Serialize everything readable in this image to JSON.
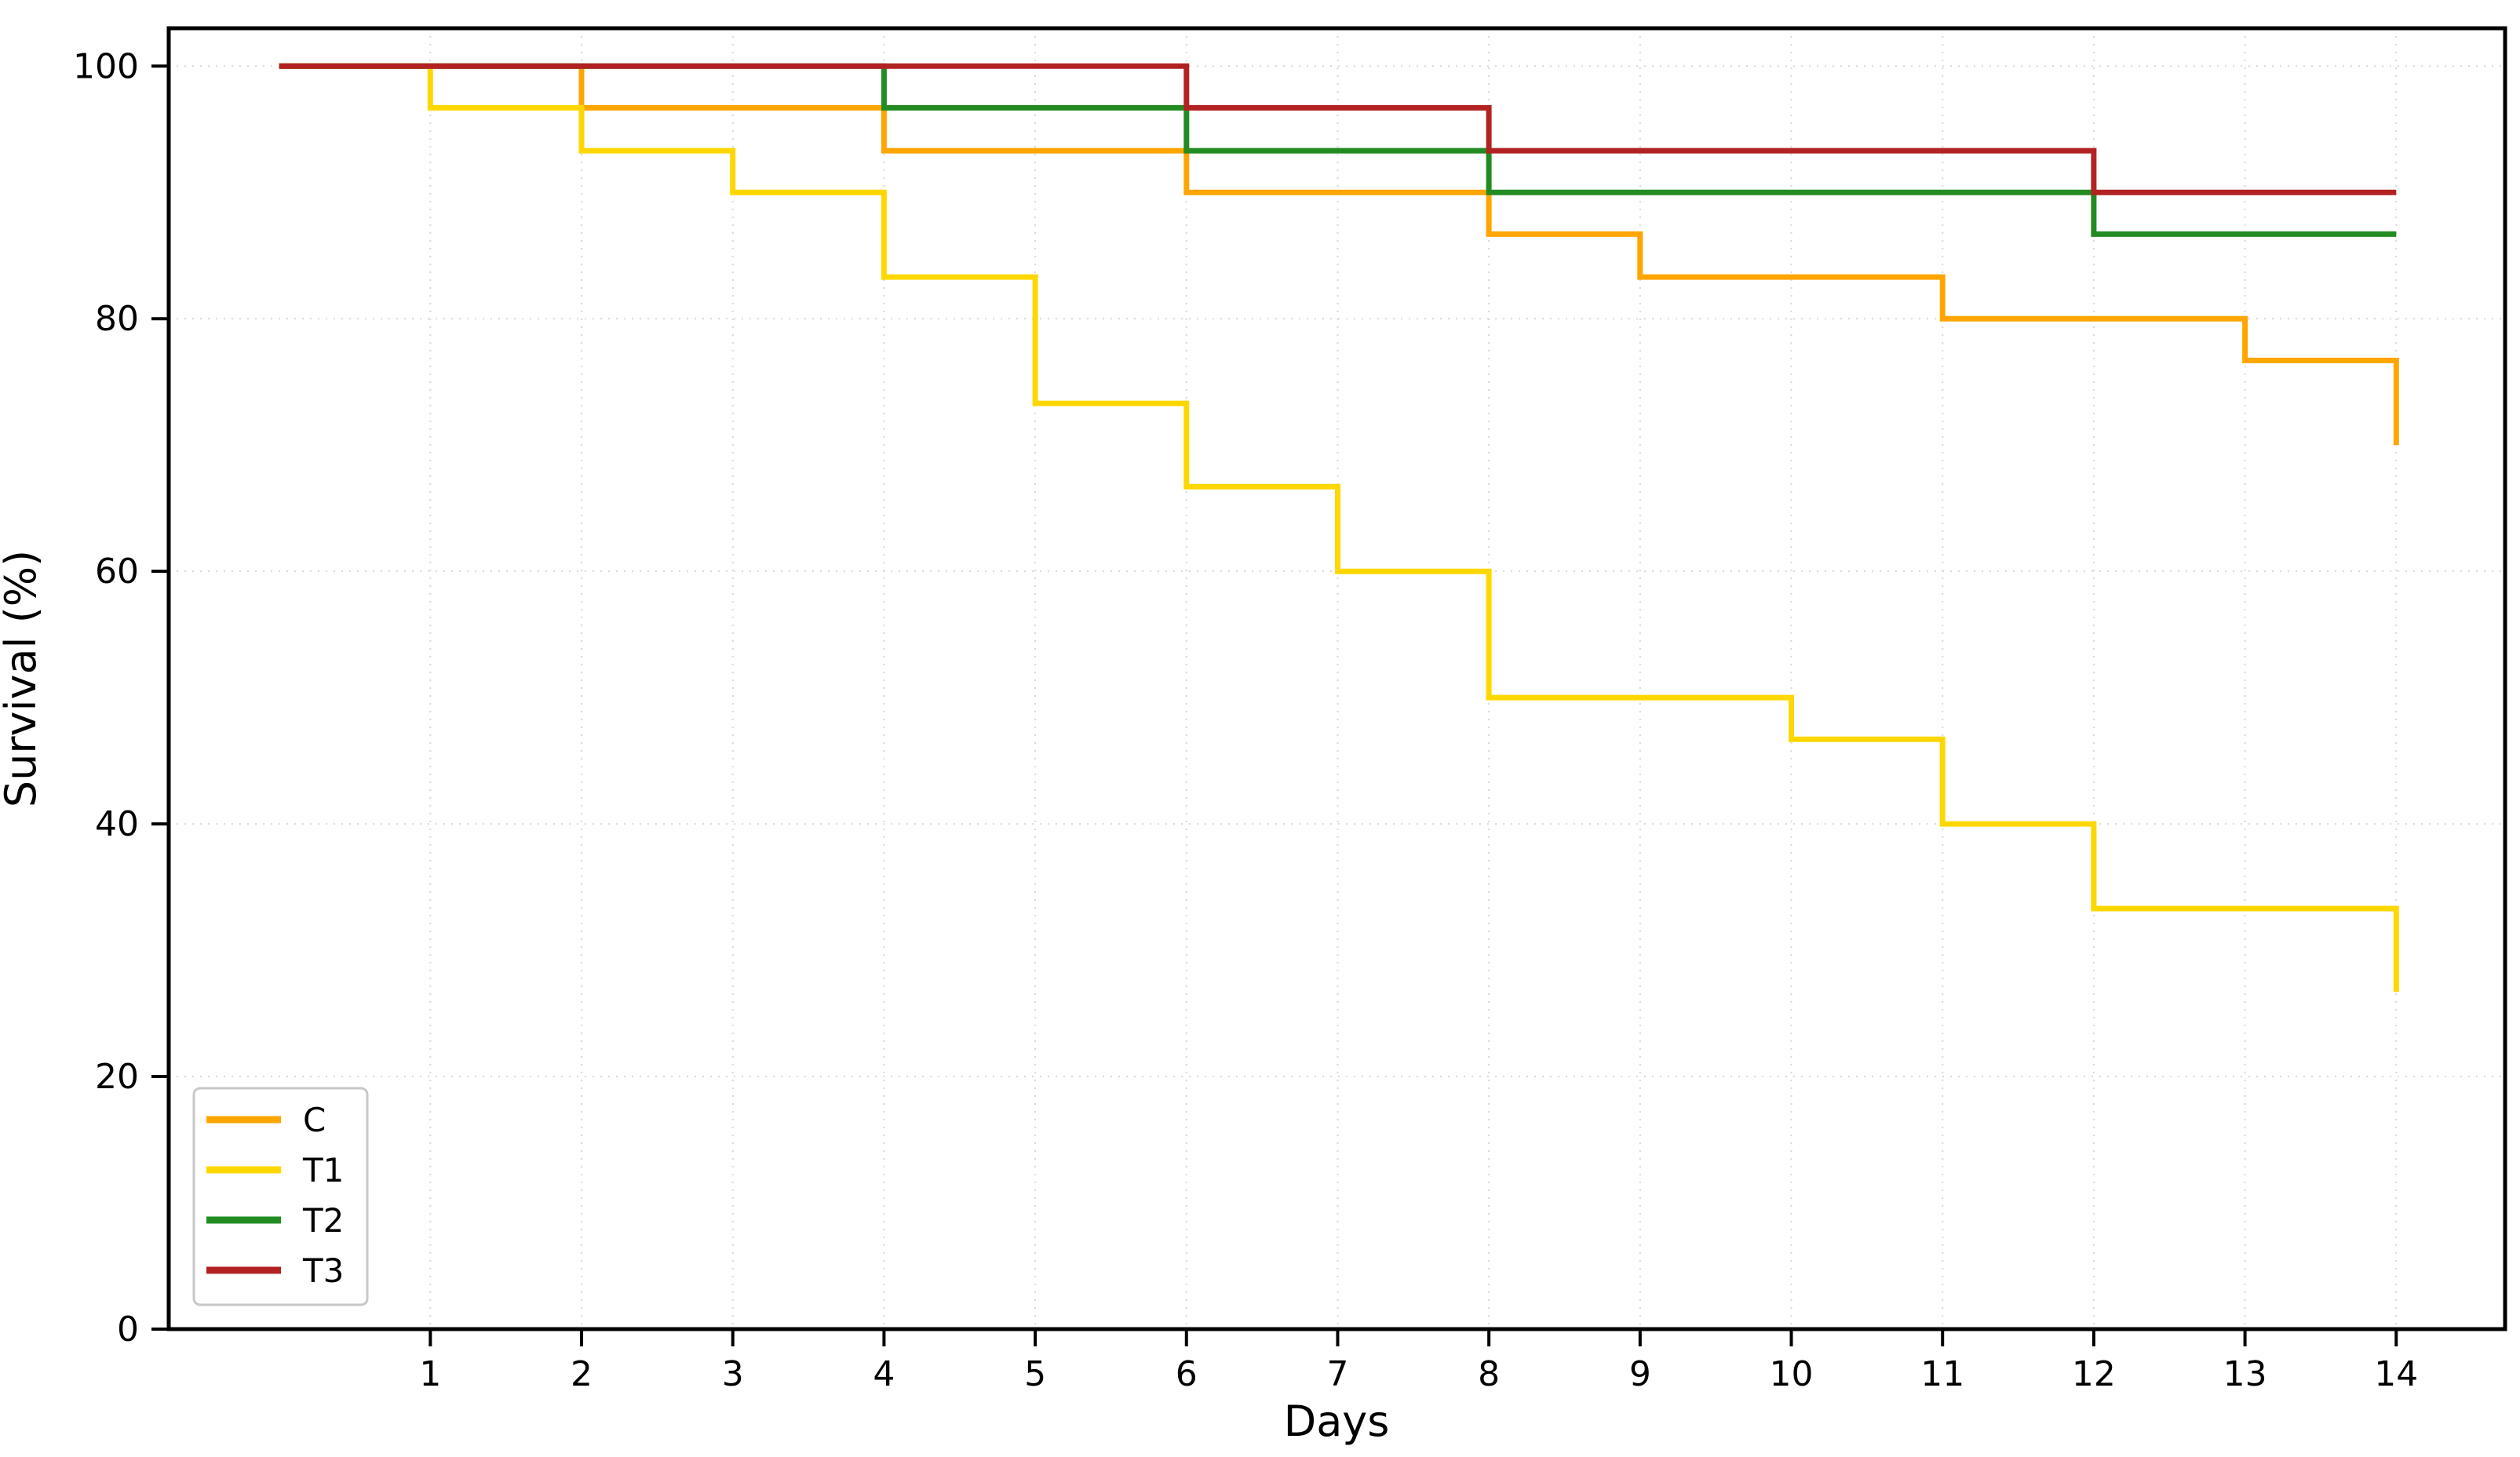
{
  "chart_data": {
    "type": "line",
    "subtype": "kaplan-meier-step",
    "title": "",
    "xlabel": "Days",
    "ylabel": "Survival (%)",
    "xlim": [
      -0.73,
      14.72
    ],
    "ylim": [
      0,
      103
    ],
    "xticks": [
      1,
      2,
      3,
      4,
      5,
      6,
      7,
      8,
      9,
      10,
      11,
      12,
      13,
      14
    ],
    "yticks": [
      0,
      20,
      40,
      60,
      80,
      100
    ],
    "grid": true,
    "grid_color": "#d8d8d8",
    "axis_color": "#000000",
    "background_color": "#ffffff",
    "legend": {
      "position": "lower-left",
      "entries": [
        "C",
        "T1",
        "T2",
        "T3"
      ]
    },
    "series": [
      {
        "name": "C",
        "color": "#FFA500",
        "points": [
          [
            0,
            100
          ],
          [
            2,
            96.7
          ],
          [
            4,
            93.3
          ],
          [
            6,
            90
          ],
          [
            8,
            86.7
          ],
          [
            9,
            83.3
          ],
          [
            11,
            80
          ],
          [
            13,
            76.7
          ],
          [
            14,
            70
          ]
        ]
      },
      {
        "name": "T1",
        "color": "#FFD700",
        "points": [
          [
            0,
            100
          ],
          [
            1,
            96.7
          ],
          [
            2,
            93.3
          ],
          [
            3,
            90
          ],
          [
            4,
            83.3
          ],
          [
            5,
            73.3
          ],
          [
            6,
            66.7
          ],
          [
            7,
            60
          ],
          [
            8,
            50
          ],
          [
            10,
            46.7
          ],
          [
            11,
            40
          ],
          [
            12,
            33.3
          ],
          [
            14,
            26.7
          ]
        ]
      },
      {
        "name": "T2",
        "color": "#228B22",
        "points": [
          [
            0,
            100
          ],
          [
            4,
            96.7
          ],
          [
            6,
            93.3
          ],
          [
            8,
            90
          ],
          [
            12,
            86.7
          ],
          [
            14,
            86.7
          ]
        ]
      },
      {
        "name": "T3",
        "color": "#B22222",
        "points": [
          [
            0,
            100
          ],
          [
            6,
            96.7
          ],
          [
            8,
            93.3
          ],
          [
            12,
            90
          ],
          [
            14,
            90
          ]
        ]
      }
    ]
  }
}
